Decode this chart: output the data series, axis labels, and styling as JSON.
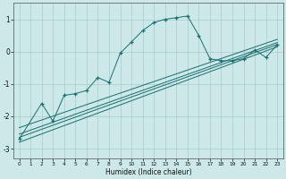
{
  "xlabel": "Humidex (Indice chaleur)",
  "bg_color": "#cce8e8",
  "line_color": "#1a6e6e",
  "grid_color": "#aacccc",
  "xlim": [
    -0.5,
    23.5
  ],
  "ylim": [
    -3.3,
    1.5
  ],
  "xticks": [
    0,
    1,
    2,
    3,
    4,
    5,
    6,
    7,
    8,
    9,
    10,
    11,
    12,
    13,
    14,
    15,
    16,
    17,
    18,
    19,
    20,
    21,
    22,
    23
  ],
  "yticks": [
    -3,
    -2,
    -1,
    0,
    1
  ],
  "curve_x": [
    0,
    2,
    3,
    4,
    5,
    6,
    7,
    8,
    9,
    10,
    11,
    12,
    13,
    14,
    15,
    16,
    17,
    18,
    19,
    20,
    21,
    22,
    23
  ],
  "curve_y": [
    -2.7,
    -1.6,
    -2.15,
    -1.35,
    -1.3,
    -1.2,
    -0.8,
    -0.95,
    -0.05,
    0.3,
    0.65,
    0.9,
    1.0,
    1.05,
    1.1,
    0.5,
    -0.22,
    -0.28,
    -0.28,
    -0.22,
    0.05,
    -0.18,
    0.22
  ],
  "lines": [
    {
      "x": [
        0,
        23
      ],
      "y": [
        -2.8,
        0.15
      ]
    },
    {
      "x": [
        0,
        23
      ],
      "y": [
        -2.55,
        0.28
      ]
    },
    {
      "x": [
        0,
        23
      ],
      "y": [
        -2.35,
        0.38
      ]
    },
    {
      "x": [
        0,
        23
      ],
      "y": [
        -2.65,
        0.22
      ]
    }
  ]
}
